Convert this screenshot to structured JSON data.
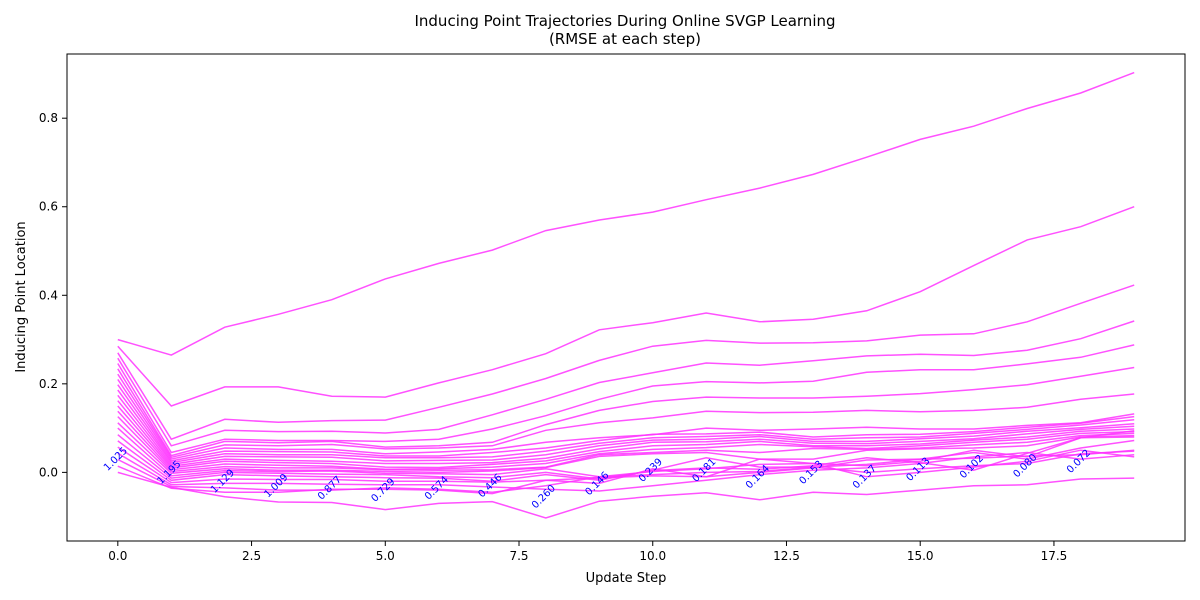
{
  "chart_data": {
    "type": "line",
    "title": "Inducing Point Trajectories During Online SVGP Learning",
    "subtitle": "(RMSE at each step)",
    "xlabel": "Update Step",
    "ylabel": "Inducing Point Location",
    "xlim": [
      -0.95,
      19.95
    ],
    "ylim": [
      -0.155,
      0.945
    ],
    "xticks": [
      0.0,
      2.5,
      5.0,
      7.5,
      10.0,
      12.5,
      15.0,
      17.5
    ],
    "xtick_labels": [
      "0.0",
      "2.5",
      "5.0",
      "7.5",
      "10.0",
      "12.5",
      "15.0",
      "17.5"
    ],
    "yticks": [
      0.0,
      0.2,
      0.4,
      0.6,
      0.8
    ],
    "ytick_labels": [
      "0.0",
      "0.2",
      "0.4",
      "0.6",
      "0.8"
    ],
    "grid": false,
    "legend": "none",
    "line_color": "#ff33ff",
    "annotation_color": "#0000ff",
    "x": [
      0,
      1,
      2,
      3,
      4,
      5,
      6,
      7,
      8,
      9,
      10,
      11,
      12,
      13,
      14,
      15,
      16,
      17,
      18,
      19
    ],
    "series": [
      {
        "values": [
          0.3,
          0.265,
          0.328,
          0.357,
          0.39,
          0.437,
          0.472,
          0.502,
          0.546,
          0.57,
          0.588,
          0.616,
          0.642,
          0.673,
          0.712,
          0.752,
          0.782,
          0.822,
          0.857,
          0.903
        ]
      },
      {
        "values": [
          0.285,
          0.15,
          0.193,
          0.193,
          0.172,
          0.17,
          0.202,
          0.232,
          0.268,
          0.322,
          0.338,
          0.36,
          0.34,
          0.346,
          0.365,
          0.408,
          0.467,
          0.525,
          0.555,
          0.6
        ]
      },
      {
        "values": [
          0.27,
          0.075,
          0.12,
          0.113,
          0.117,
          0.118,
          0.147,
          0.177,
          0.212,
          0.253,
          0.285,
          0.298,
          0.292,
          0.293,
          0.297,
          0.31,
          0.313,
          0.34,
          0.382,
          0.423
        ]
      },
      {
        "values": [
          0.258,
          0.06,
          0.095,
          0.092,
          0.093,
          0.089,
          0.097,
          0.13,
          0.165,
          0.203,
          0.225,
          0.247,
          0.242,
          0.252,
          0.263,
          0.267,
          0.264,
          0.276,
          0.302,
          0.342
        ]
      },
      {
        "values": [
          0.246,
          0.045,
          0.075,
          0.072,
          0.072,
          0.07,
          0.075,
          0.098,
          0.128,
          0.165,
          0.195,
          0.205,
          0.202,
          0.206,
          0.226,
          0.232,
          0.232,
          0.245,
          0.26,
          0.288
        ]
      },
      {
        "values": [
          0.234,
          0.038,
          0.07,
          0.067,
          0.07,
          0.057,
          0.06,
          0.068,
          0.108,
          0.14,
          0.16,
          0.17,
          0.168,
          0.168,
          0.172,
          0.178,
          0.187,
          0.198,
          0.217,
          0.237
        ]
      },
      {
        "values": [
          0.222,
          0.034,
          0.062,
          0.06,
          0.063,
          0.053,
          0.055,
          0.06,
          0.095,
          0.112,
          0.123,
          0.138,
          0.135,
          0.136,
          0.14,
          0.137,
          0.14,
          0.147,
          0.165,
          0.177
        ]
      },
      {
        "values": [
          0.21,
          0.03,
          0.055,
          0.052,
          0.052,
          0.042,
          0.046,
          0.052,
          0.068,
          0.078,
          0.085,
          0.1,
          0.095,
          0.098,
          0.102,
          0.098,
          0.098,
          0.106,
          0.112,
          0.132
        ]
      },
      {
        "values": [
          0.198,
          0.026,
          0.048,
          0.047,
          0.046,
          0.037,
          0.037,
          0.045,
          0.055,
          0.072,
          0.086,
          0.087,
          0.091,
          0.08,
          0.085,
          0.086,
          0.092,
          0.102,
          0.111,
          0.126
        ]
      },
      {
        "values": [
          0.186,
          0.022,
          0.042,
          0.04,
          0.04,
          0.033,
          0.033,
          0.035,
          0.048,
          0.066,
          0.078,
          0.081,
          0.085,
          0.075,
          0.078,
          0.08,
          0.088,
          0.097,
          0.107,
          0.119
        ]
      },
      {
        "values": [
          0.174,
          0.018,
          0.036,
          0.035,
          0.034,
          0.026,
          0.027,
          0.028,
          0.04,
          0.06,
          0.073,
          0.075,
          0.081,
          0.07,
          0.07,
          0.076,
          0.082,
          0.093,
          0.101,
          0.11
        ]
      },
      {
        "values": [
          0.162,
          0.014,
          0.03,
          0.027,
          0.025,
          0.02,
          0.02,
          0.022,
          0.032,
          0.053,
          0.068,
          0.069,
          0.075,
          0.066,
          0.065,
          0.07,
          0.076,
          0.087,
          0.097,
          0.104
        ]
      },
      {
        "values": [
          0.15,
          0.01,
          0.025,
          0.022,
          0.02,
          0.012,
          0.011,
          0.018,
          0.026,
          0.047,
          0.06,
          0.063,
          0.07,
          0.06,
          0.06,
          0.064,
          0.073,
          0.08,
          0.093,
          0.098
        ]
      },
      {
        "values": [
          0.138,
          0.006,
          0.019,
          0.016,
          0.014,
          0.007,
          0.008,
          0.012,
          0.02,
          0.042,
          0.052,
          0.056,
          0.063,
          0.058,
          0.054,
          0.06,
          0.068,
          0.075,
          0.088,
          0.092
        ]
      },
      {
        "values": [
          0.126,
          0.002,
          0.013,
          0.01,
          0.01,
          0.006,
          0.005,
          0.006,
          0.012,
          0.04,
          0.045,
          0.05,
          0.045,
          0.054,
          0.052,
          0.055,
          0.062,
          0.068,
          0.083,
          0.088
        ]
      },
      {
        "values": [
          0.112,
          -0.002,
          0.008,
          0.005,
          0.005,
          0.002,
          0.0,
          0.003,
          0.011,
          0.036,
          0.042,
          0.045,
          0.03,
          0.03,
          0.05,
          0.053,
          0.055,
          0.06,
          0.08,
          0.083
        ]
      },
      {
        "values": [
          0.1,
          -0.008,
          0.004,
          0.002,
          0.003,
          -0.002,
          -0.003,
          -0.005,
          0.008,
          -0.01,
          0.002,
          0.008,
          0.018,
          0.02,
          0.015,
          0.025,
          0.05,
          0.035,
          0.078,
          0.094
        ]
      },
      {
        "values": [
          0.085,
          -0.013,
          0.0,
          -0.002,
          -0.004,
          -0.005,
          -0.01,
          -0.012,
          0.0,
          -0.015,
          0.004,
          0.01,
          0.007,
          0.015,
          0.033,
          0.022,
          0.005,
          0.043,
          0.078,
          0.08
        ]
      },
      {
        "values": [
          0.071,
          -0.018,
          -0.005,
          -0.008,
          -0.01,
          -0.012,
          -0.013,
          -0.02,
          -0.005,
          -0.018,
          0.005,
          0.033,
          0.012,
          0.012,
          0.018,
          0.03,
          0.045,
          0.03,
          0.055,
          0.072
        ]
      },
      {
        "values": [
          0.057,
          -0.023,
          -0.015,
          -0.016,
          -0.016,
          -0.02,
          -0.02,
          -0.022,
          -0.018,
          -0.025,
          0.008,
          -0.01,
          0.03,
          0.02,
          -0.01,
          0.0,
          0.012,
          0.025,
          0.05,
          0.035
        ]
      },
      {
        "values": [
          0.043,
          -0.028,
          -0.025,
          -0.025,
          -0.027,
          -0.028,
          -0.028,
          -0.033,
          -0.038,
          -0.042,
          -0.03,
          -0.018,
          -0.005,
          0.005,
          0.01,
          0.02,
          0.035,
          0.045,
          0.03,
          0.04
        ]
      },
      {
        "values": [
          0.029,
          -0.032,
          -0.035,
          -0.04,
          -0.04,
          -0.035,
          -0.038,
          -0.045,
          -0.03,
          -0.01,
          -0.005,
          0.0,
          0.002,
          0.012,
          0.0,
          0.008,
          0.015,
          0.02,
          0.042,
          0.048
        ]
      },
      {
        "values": [
          0.014,
          -0.036,
          -0.045,
          -0.045,
          -0.038,
          -0.038,
          -0.04,
          -0.048,
          -0.018,
          -0.012,
          -0.008,
          -0.01,
          0.0,
          0.01,
          0.028,
          0.03,
          0.032,
          0.037,
          0.04,
          0.05
        ]
      },
      {
        "values": [
          0.0,
          -0.034,
          -0.055,
          -0.067,
          -0.068,
          -0.084,
          -0.07,
          -0.066,
          -0.103,
          -0.065,
          -0.054,
          -0.046,
          -0.062,
          -0.045,
          -0.05,
          -0.04,
          -0.03,
          -0.028,
          -0.015,
          -0.013
        ]
      }
    ],
    "annotations": [
      {
        "x": 0,
        "y": 0.025,
        "text": "1.025"
      },
      {
        "x": 1,
        "y": -0.005,
        "text": "1.195"
      },
      {
        "x": 2,
        "y": -0.025,
        "text": "1.129"
      },
      {
        "x": 3,
        "y": -0.035,
        "text": "1.009"
      },
      {
        "x": 4,
        "y": -0.04,
        "text": "0.877"
      },
      {
        "x": 5,
        "y": -0.045,
        "text": "0.729"
      },
      {
        "x": 6,
        "y": -0.04,
        "text": "0.574"
      },
      {
        "x": 7,
        "y": -0.035,
        "text": "0.446"
      },
      {
        "x": 8,
        "y": -0.06,
        "text": "0.260"
      },
      {
        "x": 9,
        "y": -0.03,
        "text": "0.146"
      },
      {
        "x": 10,
        "y": 0.0,
        "text": "0.239"
      },
      {
        "x": 11,
        "y": 0.0,
        "text": "0.181"
      },
      {
        "x": 12,
        "y": -0.015,
        "text": "0.164"
      },
      {
        "x": 13,
        "y": -0.005,
        "text": "0.153"
      },
      {
        "x": 14,
        "y": -0.015,
        "text": "0.137"
      },
      {
        "x": 15,
        "y": 0.002,
        "text": "0.113"
      },
      {
        "x": 16,
        "y": 0.008,
        "text": "0.102"
      },
      {
        "x": 17,
        "y": 0.01,
        "text": "0.080"
      },
      {
        "x": 18,
        "y": 0.02,
        "text": "0.072"
      }
    ]
  }
}
